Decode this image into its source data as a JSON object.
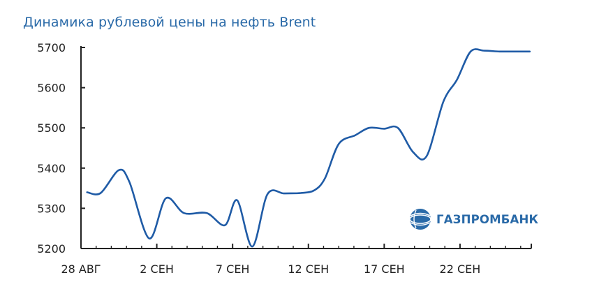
{
  "chart_data": {
    "type": "line",
    "title": "Динамика рублевой цены на нефть Brent",
    "xlabel": "",
    "ylabel": "",
    "ylim": [
      5200,
      5700
    ],
    "yticks": [
      5200,
      5300,
      5400,
      5500,
      5600,
      5700
    ],
    "xlim": [
      0,
      29.7
    ],
    "xticks": [
      {
        "x": 0,
        "label": "28 АВГ"
      },
      {
        "x": 5,
        "label": "2 СЕН"
      },
      {
        "x": 10,
        "label": "7 СЕН"
      },
      {
        "x": 15,
        "label": "12 СЕН"
      },
      {
        "x": 20,
        "label": "17 СЕН"
      },
      {
        "x": 25,
        "label": "22 СЕН"
      }
    ],
    "grid": false,
    "line_color": "#1f5ba6",
    "series": [
      {
        "x": [
          0.4,
          1.3,
          2.5,
          3.2,
          4.5,
          5.6,
          6.8,
          8.3,
          9.5,
          10.3,
          11.3,
          12.3,
          13.4,
          14.5,
          15.4,
          16.1,
          17.0,
          18.1,
          19.0,
          20.0,
          20.9,
          21.9,
          22.8,
          23.9,
          24.8,
          25.7,
          26.6,
          27.6,
          28.5,
          29.6
        ],
        "y": [
          5340,
          5338,
          5395,
          5365,
          5225,
          5325,
          5288,
          5288,
          5258,
          5320,
          5205,
          5335,
          5337,
          5338,
          5345,
          5375,
          5460,
          5482,
          5500,
          5498,
          5500,
          5440,
          5430,
          5565,
          5620,
          5690,
          5692,
          5690,
          5690,
          5690
        ]
      }
    ]
  },
  "brand": {
    "name": "ГАЗПРОМБАНК",
    "color": "#2a6aa8"
  }
}
